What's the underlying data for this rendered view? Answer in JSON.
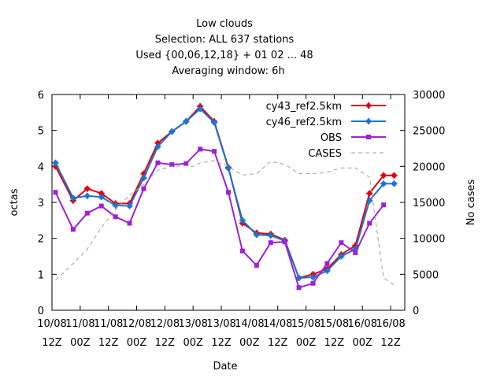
{
  "chart_data": {
    "type": "line",
    "title_lines": [
      "Low clouds",
      "Selection: ALL    637 stations",
      "Used {00,06,12,18} + 01 02 ... 48",
      "Averaging window:  6h"
    ],
    "xlabel": "Date",
    "ylabel": "octas",
    "y2label": "No cases",
    "ylim": [
      0,
      6
    ],
    "y2lim": [
      0,
      30000
    ],
    "yticks": [
      "0",
      "1",
      "2",
      "3",
      "4",
      "5",
      "6"
    ],
    "y2ticks": [
      "0",
      "5000",
      "10000",
      "15000",
      "20000",
      "25000",
      "30000"
    ],
    "x_ticks": [
      {
        "x": 0,
        "top": "10/08",
        "bottom": "12Z"
      },
      {
        "x": 4,
        "top": "11/08",
        "bottom": "00Z"
      },
      {
        "x": 8,
        "top": "11/08",
        "bottom": "12Z"
      },
      {
        "x": 12,
        "top": "12/08",
        "bottom": "00Z"
      },
      {
        "x": 16,
        "top": "12/08",
        "bottom": "12Z"
      },
      {
        "x": 20,
        "top": "13/08",
        "bottom": "00Z"
      },
      {
        "x": 24,
        "top": "13/08",
        "bottom": "12Z"
      },
      {
        "x": 28,
        "top": "14/08",
        "bottom": "00Z"
      },
      {
        "x": 32,
        "top": "14/08",
        "bottom": "12Z"
      },
      {
        "x": 36,
        "top": "15/08",
        "bottom": "00Z"
      },
      {
        "x": 40,
        "top": "15/08",
        "bottom": "12Z"
      },
      {
        "x": 44,
        "top": "16/08",
        "bottom": "00Z"
      },
      {
        "x": 48,
        "top": "16/08",
        "bottom": "12Z"
      }
    ],
    "xlim": [
      0,
      50
    ],
    "legend_position": "top-right",
    "series": [
      {
        "name": "cy43_ref2.5km",
        "color": "#e0000f",
        "marker": "plus-bold",
        "axis": "y",
        "x": [
          0.5,
          3,
          5,
          7,
          9,
          11,
          13,
          15,
          17,
          19,
          21,
          23,
          25,
          27,
          29,
          31,
          33,
          35,
          37,
          39,
          41,
          43,
          45,
          47,
          48.5
        ],
        "values": [
          4.0,
          3.05,
          3.38,
          3.25,
          2.97,
          2.97,
          3.8,
          4.65,
          4.97,
          5.25,
          5.67,
          5.25,
          3.97,
          2.42,
          2.15,
          2.12,
          1.95,
          0.9,
          1.0,
          1.15,
          1.55,
          1.8,
          3.25,
          3.75,
          3.75
        ]
      },
      {
        "name": "cy46_ref2.5km",
        "color": "#1a74d2",
        "marker": "plus-bold",
        "axis": "y",
        "x": [
          0.5,
          3,
          5,
          7,
          9,
          11,
          13,
          15,
          17,
          19,
          21,
          23,
          25,
          27,
          29,
          31,
          33,
          35,
          37,
          39,
          41,
          43,
          45,
          47,
          48.5
        ],
        "values": [
          4.1,
          3.12,
          3.18,
          3.15,
          2.92,
          2.9,
          3.68,
          4.55,
          4.97,
          5.25,
          5.6,
          5.22,
          3.95,
          2.5,
          2.1,
          2.08,
          1.93,
          0.9,
          0.92,
          1.1,
          1.5,
          1.7,
          3.05,
          3.52,
          3.52
        ]
      },
      {
        "name": "OBS",
        "color": "#a020d8",
        "marker": "box",
        "axis": "y",
        "x": [
          0.5,
          3,
          5,
          7,
          9,
          11,
          13,
          15,
          17,
          19,
          21,
          23,
          25,
          27,
          29,
          31,
          33,
          35,
          37,
          39,
          41,
          43,
          45,
          47
        ],
        "values": [
          3.28,
          2.25,
          2.7,
          2.9,
          2.6,
          2.42,
          3.38,
          4.1,
          4.05,
          4.08,
          4.48,
          4.42,
          3.28,
          1.65,
          1.25,
          1.88,
          1.9,
          0.63,
          0.75,
          1.3,
          1.88,
          1.6,
          2.42,
          2.93
        ]
      },
      {
        "name": "CASES",
        "color": "#a0a0a0",
        "marker": "none",
        "dashed": true,
        "axis": "y2",
        "x": [
          0.5,
          3,
          5,
          7,
          9,
          11,
          13,
          15,
          17,
          19,
          20,
          21,
          23,
          25,
          27,
          29,
          31,
          33,
          35,
          37,
          39,
          41,
          43,
          45,
          47,
          48.5
        ],
        "values": [
          4200,
          6500,
          8500,
          11500,
          14000,
          16000,
          17500,
          19500,
          20000,
          20100,
          20000,
          20500,
          20800,
          20000,
          18800,
          19000,
          20700,
          20300,
          19000,
          19000,
          19200,
          19800,
          19800,
          18500,
          4500,
          3500
        ]
      }
    ]
  }
}
